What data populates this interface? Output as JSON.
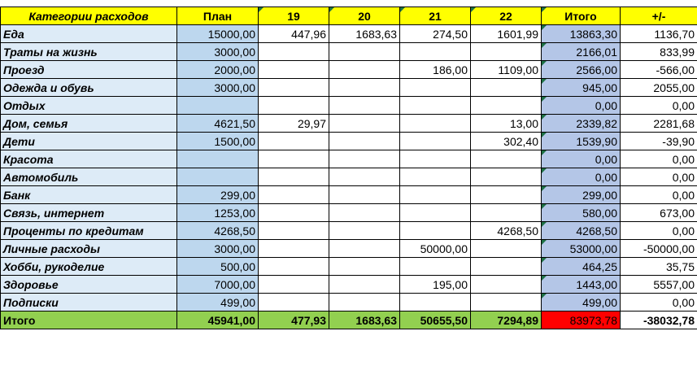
{
  "headers": [
    "Категории расходов",
    "План",
    "19",
    "20",
    "21",
    "22",
    "Итого",
    "+/-"
  ],
  "rows": [
    {
      "category": "Еда",
      "plan": "15000,00",
      "d19": "447,96",
      "d20": "1683,63",
      "d21": "274,50",
      "d22": "1601,99",
      "itogo": "13863,30",
      "diff": "1136,70"
    },
    {
      "category": "Траты на жизнь",
      "plan": "3000,00",
      "d19": "",
      "d20": "",
      "d21": "",
      "d22": "",
      "itogo": "2166,01",
      "diff": "833,99"
    },
    {
      "category": "Проезд",
      "plan": "2000,00",
      "d19": "",
      "d20": "",
      "d21": "186,00",
      "d22": "1109,00",
      "itogo": "2566,00",
      "diff": "-566,00"
    },
    {
      "category": "Одежда и обувь",
      "plan": "3000,00",
      "d19": "",
      "d20": "",
      "d21": "",
      "d22": "",
      "itogo": "945,00",
      "diff": "2055,00"
    },
    {
      "category": "Отдых",
      "plan": "",
      "d19": "",
      "d20": "",
      "d21": "",
      "d22": "",
      "itogo": "0,00",
      "diff": "0,00"
    },
    {
      "category": "Дом, семья",
      "plan": "4621,50",
      "d19": "29,97",
      "d20": "",
      "d21": "",
      "d22": "13,00",
      "itogo": "2339,82",
      "diff": "2281,68"
    },
    {
      "category": "Дети",
      "plan": "1500,00",
      "d19": "",
      "d20": "",
      "d21": "",
      "d22": "302,40",
      "itogo": "1539,90",
      "diff": "-39,90"
    },
    {
      "category": "Красота",
      "plan": "",
      "d19": "",
      "d20": "",
      "d21": "",
      "d22": "",
      "itogo": "0,00",
      "diff": "0,00"
    },
    {
      "category": "Автомобиль",
      "plan": "",
      "d19": "",
      "d20": "",
      "d21": "",
      "d22": "",
      "itogo": "0,00",
      "diff": "0,00"
    },
    {
      "category": "Банк",
      "plan": "299,00",
      "d19": "",
      "d20": "",
      "d21": "",
      "d22": "",
      "itogo": "299,00",
      "diff": "0,00"
    },
    {
      "category": "Связь, интернет",
      "plan": "1253,00",
      "d19": "",
      "d20": "",
      "d21": "",
      "d22": "",
      "itogo": "580,00",
      "diff": "673,00"
    },
    {
      "category": "Проценты по кредитам",
      "plan": "4268,50",
      "d19": "",
      "d20": "",
      "d21": "",
      "d22": "4268,50",
      "itogo": "4268,50",
      "diff": "0,00"
    },
    {
      "category": "Личные расходы",
      "plan": "3000,00",
      "d19": "",
      "d20": "",
      "d21": "50000,00",
      "d22": "",
      "itogo": "53000,00",
      "diff": "-50000,00"
    },
    {
      "category": "Хобби, рукоделие",
      "plan": "500,00",
      "d19": "",
      "d20": "",
      "d21": "",
      "d22": "",
      "itogo": "464,25",
      "diff": "35,75"
    },
    {
      "category": "Здоровье",
      "plan": "7000,00",
      "d19": "",
      "d20": "",
      "d21": "195,00",
      "d22": "",
      "itogo": "1443,00",
      "diff": "5557,00"
    },
    {
      "category": "Подписки",
      "plan": "499,00",
      "d19": "",
      "d20": "",
      "d21": "",
      "d22": "",
      "itogo": "499,00",
      "diff": "0,00"
    }
  ],
  "total": {
    "category": "Итого",
    "plan": "45941,00",
    "d19": "477,93",
    "d20": "1683,63",
    "d21": "50655,50",
    "d22": "7294,89",
    "itogo": "83973,78",
    "diff": "-38032,78"
  },
  "colors": {
    "header": "#ffff00",
    "category": "#ddebf7",
    "plan": "#bdd7ee",
    "itogo": "#b4c6e7",
    "total": "#92d050",
    "alert": "#ff0000"
  }
}
